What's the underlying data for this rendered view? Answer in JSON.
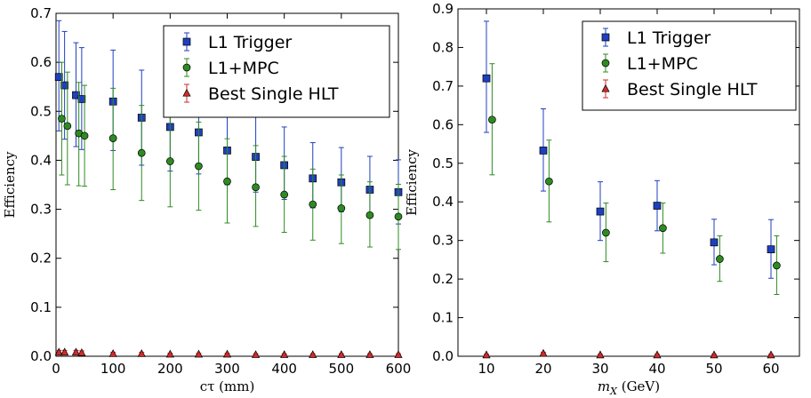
{
  "colors": {
    "l1_trigger": "#1f3fbf",
    "l1_mpc": "#2e8b22",
    "best_single_hlt": "#d42a2a",
    "axes": "#000000",
    "background": "#ffffff"
  },
  "chart_data": [
    {
      "type": "scatter",
      "error_bars": true,
      "xlabel": "cτ (mm)",
      "ylabel": "Efficiency",
      "xlim": [
        0,
        600
      ],
      "ylim": [
        0,
        0.7
      ],
      "x_ticks": [
        "0",
        "100",
        "200",
        "300",
        "400",
        "500",
        "600"
      ],
      "y_ticks": [
        "0.0",
        "0.1",
        "0.2",
        "0.3",
        "0.4",
        "0.5",
        "0.6",
        "0.7"
      ],
      "grid": false,
      "legend_position": "top-right",
      "series": [
        {
          "name": "L1 Trigger",
          "color_key": "l1_trigger",
          "marker": "square",
          "x": [
            5,
            15,
            35,
            45,
            100,
            150,
            200,
            250,
            300,
            350,
            400,
            450,
            500,
            550,
            600
          ],
          "y": [
            0.57,
            0.553,
            0.533,
            0.525,
            0.52,
            0.487,
            0.468,
            0.457,
            0.42,
            0.407,
            0.39,
            0.363,
            0.355,
            0.34,
            0.335
          ],
          "err_low": [
            0.11,
            0.11,
            0.105,
            0.103,
            0.1,
            0.097,
            0.09,
            0.085,
            0.07,
            0.072,
            0.07,
            0.06,
            0.06,
            0.05,
            0.065
          ],
          "err_high": [
            0.115,
            0.11,
            0.107,
            0.105,
            0.105,
            0.097,
            0.095,
            0.09,
            0.085,
            0.083,
            0.078,
            0.073,
            0.071,
            0.068,
            0.066
          ]
        },
        {
          "name": "L1+MPC",
          "color_key": "l1_mpc",
          "marker": "circle",
          "x": [
            10,
            20,
            40,
            50,
            100,
            150,
            200,
            250,
            300,
            350,
            400,
            450,
            500,
            550,
            600
          ],
          "y": [
            0.485,
            0.47,
            0.455,
            0.45,
            0.445,
            0.415,
            0.398,
            0.388,
            0.357,
            0.345,
            0.33,
            0.31,
            0.302,
            0.288,
            0.285
          ],
          "err_low": [
            0.115,
            0.12,
            0.107,
            0.103,
            0.105,
            0.097,
            0.093,
            0.09,
            0.085,
            0.08,
            0.077,
            0.073,
            0.072,
            0.065,
            0.067
          ],
          "err_high": [
            0.115,
            0.11,
            0.104,
            0.103,
            0.102,
            0.097,
            0.093,
            0.09,
            0.087,
            0.085,
            0.078,
            0.072,
            0.068,
            0.068,
            0.066
          ]
        },
        {
          "name": "Best Single HLT",
          "color_key": "best_single_hlt",
          "marker": "triangle",
          "x": [
            5,
            15,
            35,
            45,
            100,
            150,
            200,
            250,
            300,
            350,
            400,
            450,
            500,
            550,
            600
          ],
          "y": [
            0.008,
            0.008,
            0.008,
            0.007,
            0.005,
            0.005,
            0.004,
            0.004,
            0.004,
            0.003,
            0.003,
            0.003,
            0.003,
            0.003,
            0.003
          ],
          "err_low": [
            0.004,
            0.004,
            0.004,
            0.004,
            0.003,
            0.003,
            0.002,
            0.002,
            0.002,
            0.002,
            0.002,
            0.002,
            0.002,
            0.002,
            0.002
          ],
          "err_high": [
            0.004,
            0.004,
            0.004,
            0.004,
            0.003,
            0.003,
            0.002,
            0.002,
            0.002,
            0.002,
            0.002,
            0.002,
            0.002,
            0.002,
            0.002
          ]
        }
      ]
    },
    {
      "type": "scatter",
      "error_bars": true,
      "xlabel": "m",
      "xlabel_subscript": "X",
      "xlabel_unit": "(GeV)",
      "ylabel": "Efficiency",
      "xlim": [
        5,
        65
      ],
      "ylim": [
        0,
        0.9
      ],
      "x_ticks": [
        "10",
        "20",
        "30",
        "40",
        "50",
        "60"
      ],
      "y_ticks": [
        "0.0",
        "0.1",
        "0.2",
        "0.3",
        "0.4",
        "0.5",
        "0.6",
        "0.7",
        "0.8",
        "0.9"
      ],
      "grid": false,
      "legend_position": "top-right",
      "series": [
        {
          "name": "L1 Trigger",
          "color_key": "l1_trigger",
          "marker": "square",
          "x": [
            10,
            20,
            30,
            40,
            50,
            60
          ],
          "y": [
            0.72,
            0.533,
            0.375,
            0.39,
            0.295,
            0.277
          ],
          "err_low": [
            0.14,
            0.105,
            0.075,
            0.065,
            0.058,
            0.075
          ],
          "err_high": [
            0.148,
            0.108,
            0.077,
            0.065,
            0.06,
            0.077
          ]
        },
        {
          "name": "L1+MPC",
          "color_key": "l1_mpc",
          "marker": "circle",
          "x": [
            11,
            21,
            31,
            41,
            51,
            61
          ],
          "y": [
            0.613,
            0.453,
            0.32,
            0.332,
            0.252,
            0.235
          ],
          "err_low": [
            0.143,
            0.105,
            0.075,
            0.065,
            0.058,
            0.075
          ],
          "err_high": [
            0.145,
            0.107,
            0.077,
            0.065,
            0.06,
            0.077
          ]
        },
        {
          "name": "Best Single HLT",
          "color_key": "best_single_hlt",
          "marker": "triangle",
          "x": [
            10,
            20,
            30,
            40,
            50,
            60
          ],
          "y": [
            0.003,
            0.007,
            0.003,
            0.003,
            0.003,
            0.003
          ],
          "err_low": [
            0.002,
            0.003,
            0.002,
            0.002,
            0.002,
            0.002
          ],
          "err_high": [
            0.002,
            0.003,
            0.002,
            0.002,
            0.002,
            0.002
          ]
        }
      ]
    }
  ]
}
